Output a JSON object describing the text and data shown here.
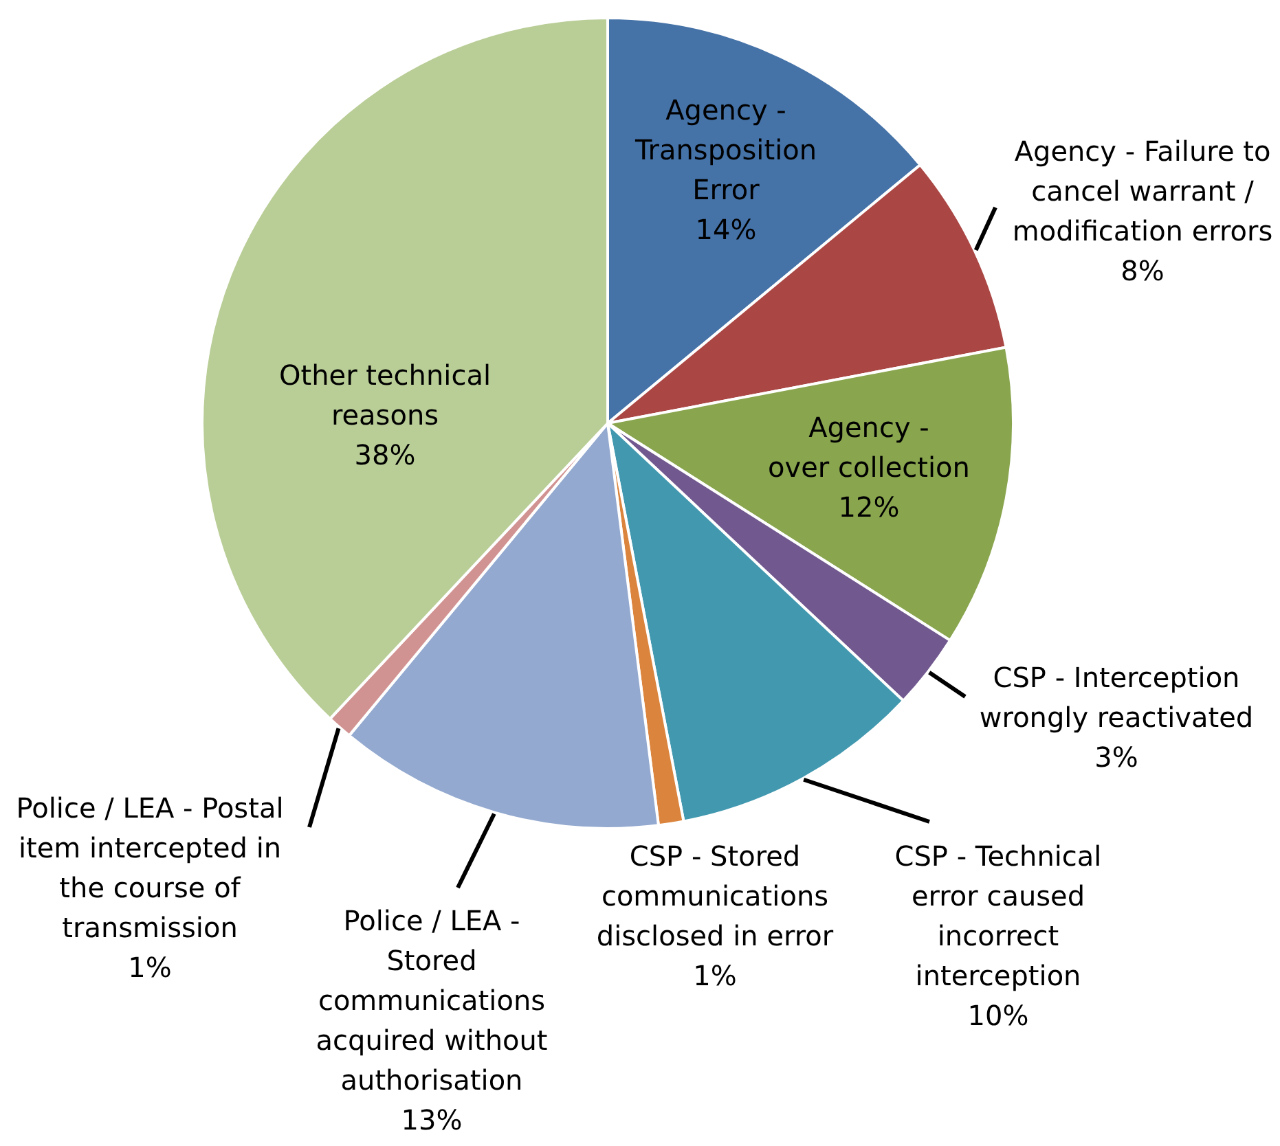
{
  "chart_data": {
    "type": "pie",
    "categories": [
      "Agency -\nTransposition\nError",
      "Agency - Failure to\ncancel warrant /\nmodification errors",
      "Agency -\nover collection",
      "CSP - Interception\nwrongly reactivated",
      "CSP - Technical\nerror caused\nincorrect\ninterception",
      "CSP - Stored\ncommunications\ndisclosed in error",
      "Police / LEA -\nStored\ncommunications\nacquired without\nauthorisation",
      "Police / LEA - Postal\nitem intercepted in\nthe course of\ntransmission",
      "Other technical\nreasons"
    ],
    "values": [
      14,
      8,
      12,
      3,
      10,
      1,
      13,
      1,
      38
    ],
    "colors": [
      "#4572a7",
      "#aa4643",
      "#89a54e",
      "#71588f",
      "#4198af",
      "#db843d",
      "#93a9cf",
      "#d19392",
      "#b9cd96"
    ],
    "value_labels": [
      "14%",
      "8%",
      "12%",
      "3%",
      "10%",
      "1%",
      "13%",
      "1%",
      "38%"
    ]
  }
}
